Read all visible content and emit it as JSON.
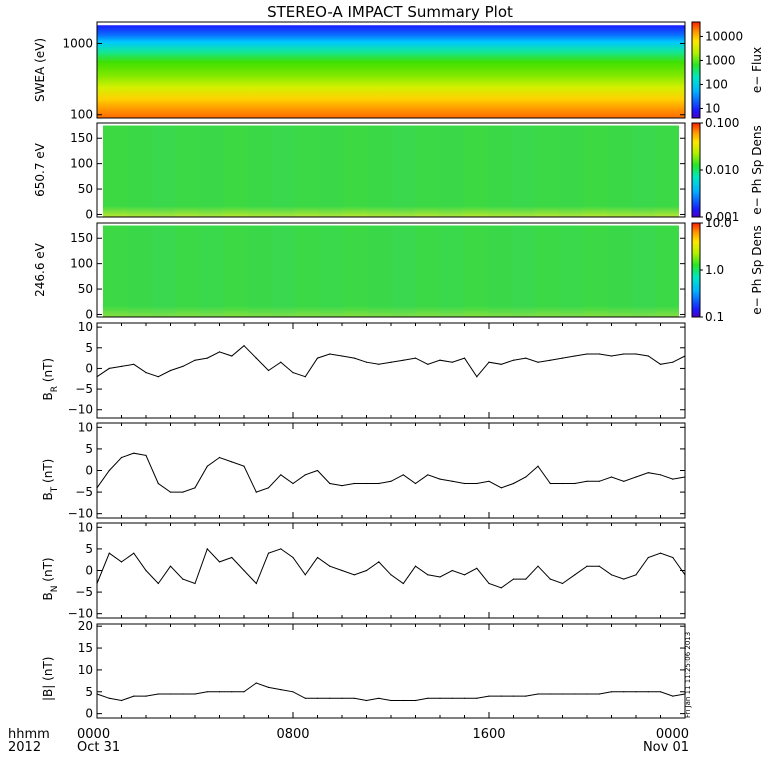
{
  "title": "STEREO-A IMPACT Summary Plot",
  "time_axis": {
    "row_label_1": "hhmm",
    "row_label_2": "2012",
    "ticks": [
      {
        "hour": 0,
        "top": "0000",
        "bottom": "Oct 31"
      },
      {
        "hour": 8,
        "top": "0800",
        "bottom": ""
      },
      {
        "hour": 16,
        "top": "1600",
        "bottom": ""
      },
      {
        "hour": 24,
        "top": "0000",
        "bottom": "Nov 01"
      }
    ]
  },
  "side_stamp": "Fri Jan 11 11:25:06 2013",
  "chart_data": [
    {
      "type": "heatmap",
      "panel": "swea",
      "ylabel": "SWEA (eV)",
      "yscale": "log",
      "ylim": [
        90,
        2000
      ],
      "yticks": [
        {
          "v": 100,
          "t": "100"
        },
        {
          "v": 1000,
          "t": "1000"
        }
      ],
      "colorbar": {
        "label": "e− Flux",
        "scale": "log",
        "range": [
          4,
          40000
        ],
        "ticks": [
          {
            "v": 10,
            "t": "10"
          },
          {
            "v": 100,
            "t": "100"
          },
          {
            "v": 1000,
            "t": "1000"
          },
          {
            "v": 10000,
            "t": "10000"
          }
        ]
      },
      "colors": {
        "bottom": "#ff6a00",
        "mid": "#40e000",
        "top": "#1a1aff"
      }
    },
    {
      "type": "heatmap",
      "panel": "pad650",
      "ylabel": "650.7 eV",
      "ylim": [
        -5,
        180
      ],
      "yticks": [
        {
          "v": 0,
          "t": "0"
        },
        {
          "v": 50,
          "t": "50"
        },
        {
          "v": 100,
          "t": "100"
        },
        {
          "v": 150,
          "t": "150"
        }
      ],
      "colorbar": {
        "label": "e− Ph Sp Dens",
        "scale": "log",
        "range": [
          0.001,
          0.1
        ],
        "ticks": [
          {
            "v": 0.001,
            "t": "0.001"
          },
          {
            "v": 0.01,
            "t": "0.010"
          },
          {
            "v": 0.1,
            "t": "0.100"
          }
        ]
      },
      "colors": {
        "main": "#3ed93e",
        "low": "#c4e82a",
        "high": "#20d8a0"
      }
    },
    {
      "type": "heatmap",
      "panel": "pad246",
      "ylabel": "246.6 eV",
      "ylim": [
        -5,
        180
      ],
      "yticks": [
        {
          "v": 0,
          "t": "0"
        },
        {
          "v": 50,
          "t": "50"
        },
        {
          "v": 100,
          "t": "100"
        },
        {
          "v": 150,
          "t": "150"
        }
      ],
      "colorbar": {
        "label": "e− Ph Sp Dens",
        "scale": "log",
        "range": [
          0.1,
          10
        ],
        "ticks": [
          {
            "v": 0.1,
            "t": "0.1"
          },
          {
            "v": 1,
            "t": "1.0"
          },
          {
            "v": 10,
            "t": "10.0"
          }
        ]
      },
      "colors": {
        "main": "#3ed93e",
        "low": "#8ee03a",
        "high": "#20d8b0"
      }
    },
    {
      "type": "line",
      "panel": "br",
      "ylabel_main": "B",
      "ylabel_sub": "R",
      "ylabel_unit": " (nT)",
      "ylim": [
        -12,
        11
      ],
      "yticks": [
        {
          "v": -10,
          "t": "−10"
        },
        {
          "v": -5,
          "t": "−5"
        },
        {
          "v": 0,
          "t": "0"
        },
        {
          "v": 5,
          "t": "5"
        },
        {
          "v": 10,
          "t": "10"
        }
      ],
      "x": [
        0,
        0.5,
        1,
        1.5,
        2,
        2.5,
        3,
        3.5,
        4,
        4.5,
        5,
        5.5,
        6,
        6.5,
        7,
        7.5,
        8,
        8.5,
        9,
        9.5,
        10,
        10.5,
        11,
        11.5,
        12,
        12.5,
        13,
        13.5,
        14,
        14.5,
        15,
        15.5,
        16,
        16.5,
        17,
        17.5,
        18,
        18.5,
        19,
        19.5,
        20,
        20.5,
        21,
        21.5,
        22,
        22.5,
        23,
        23.5,
        24
      ],
      "y": [
        -2,
        0,
        0.5,
        1,
        -1,
        -2,
        -0.5,
        0.5,
        2,
        2.5,
        4,
        3,
        5.5,
        2.5,
        -0.5,
        1.5,
        -1,
        -2,
        2.5,
        3.5,
        3,
        2.5,
        1.5,
        1,
        1.5,
        2,
        2.5,
        1,
        2,
        1.5,
        2.5,
        -2,
        1.5,
        1,
        2,
        2.5,
        1.5,
        2,
        2.5,
        3,
        3.5,
        3.5,
        3,
        3.5,
        3.5,
        3,
        1,
        1.5,
        3
      ]
    },
    {
      "type": "line",
      "panel": "bt",
      "ylabel_main": "B",
      "ylabel_sub": "T",
      "ylabel_unit": " (nT)",
      "ylim": [
        -11,
        11
      ],
      "yticks": [
        {
          "v": -10,
          "t": "−10"
        },
        {
          "v": -5,
          "t": "−5"
        },
        {
          "v": 0,
          "t": "0"
        },
        {
          "v": 5,
          "t": "5"
        },
        {
          "v": 10,
          "t": "10"
        }
      ],
      "x": [
        0,
        0.5,
        1,
        1.5,
        2,
        2.5,
        3,
        3.5,
        4,
        4.5,
        5,
        5.5,
        6,
        6.5,
        7,
        7.5,
        8,
        8.5,
        9,
        9.5,
        10,
        10.5,
        11,
        11.5,
        12,
        12.5,
        13,
        13.5,
        14,
        14.5,
        15,
        15.5,
        16,
        16.5,
        17,
        17.5,
        18,
        18.5,
        19,
        19.5,
        20,
        20.5,
        21,
        21.5,
        22,
        22.5,
        23,
        23.5,
        24
      ],
      "y": [
        -4,
        0,
        3,
        4,
        3.5,
        -3,
        -5,
        -5,
        -4,
        1,
        3,
        2,
        1,
        -5,
        -4,
        -1,
        -3,
        -1,
        0,
        -3,
        -3.5,
        -3,
        -3,
        -3,
        -2.5,
        -1,
        -3,
        -1,
        -2,
        -2.5,
        -3,
        -3,
        -2.5,
        -4,
        -3,
        -1.5,
        1,
        -3,
        -3,
        -3,
        -2.5,
        -2.5,
        -1.5,
        -2.5,
        -1.5,
        -0.5,
        -1,
        -2,
        -1.5
      ]
    },
    {
      "type": "line",
      "panel": "bn",
      "ylabel_main": "B",
      "ylabel_sub": "N",
      "ylabel_unit": " (nT)",
      "ylim": [
        -11,
        11
      ],
      "yticks": [
        {
          "v": -10,
          "t": "−10"
        },
        {
          "v": -5,
          "t": "−5"
        },
        {
          "v": 0,
          "t": "0"
        },
        {
          "v": 5,
          "t": "5"
        },
        {
          "v": 10,
          "t": "10"
        }
      ],
      "x": [
        0,
        0.5,
        1,
        1.5,
        2,
        2.5,
        3,
        3.5,
        4,
        4.5,
        5,
        5.5,
        6,
        6.5,
        7,
        7.5,
        8,
        8.5,
        9,
        9.5,
        10,
        10.5,
        11,
        11.5,
        12,
        12.5,
        13,
        13.5,
        14,
        14.5,
        15,
        15.5,
        16,
        16.5,
        17,
        17.5,
        18,
        18.5,
        19,
        19.5,
        20,
        20.5,
        21,
        21.5,
        22,
        22.5,
        23,
        23.5,
        24
      ],
      "y": [
        -3,
        4,
        2,
        4,
        0,
        -3,
        1,
        -2,
        -3,
        5,
        2,
        3,
        0,
        -3,
        4,
        5,
        3,
        -1,
        3,
        1,
        0,
        -1,
        0,
        2,
        -1,
        -3,
        1,
        -1,
        -1.5,
        0,
        -1,
        0.5,
        -3,
        -4,
        -2,
        -2,
        1,
        -2,
        -3,
        -1,
        1,
        1,
        -1,
        -2,
        -1,
        3,
        4,
        3,
        -1
      ]
    },
    {
      "type": "line",
      "panel": "bmag",
      "ylabel_main": "|B| (nT)",
      "ylim": [
        -1,
        20.5
      ],
      "yticks": [
        {
          "v": 0,
          "t": "0"
        },
        {
          "v": 5,
          "t": "5"
        },
        {
          "v": 10,
          "t": "10"
        },
        {
          "v": 15,
          "t": "15"
        },
        {
          "v": 20,
          "t": "20"
        }
      ],
      "x": [
        0,
        0.5,
        1,
        1.5,
        2,
        2.5,
        3,
        3.5,
        4,
        4.5,
        5,
        5.5,
        6,
        6.5,
        7,
        7.5,
        8,
        8.5,
        9,
        9.5,
        10,
        10.5,
        11,
        11.5,
        12,
        12.5,
        13,
        13.5,
        14,
        14.5,
        15,
        15.5,
        16,
        16.5,
        17,
        17.5,
        18,
        18.5,
        19,
        19.5,
        20,
        20.5,
        21,
        21.5,
        22,
        22.5,
        23,
        23.5,
        24
      ],
      "y": [
        4.5,
        3.5,
        3,
        4,
        4,
        4.5,
        4.5,
        4.5,
        4.5,
        5,
        5,
        5,
        5,
        7,
        6,
        5.5,
        5,
        3.5,
        3.5,
        3.5,
        3.5,
        3.5,
        3,
        3.5,
        3,
        3,
        3,
        3.5,
        3.5,
        3.5,
        3.5,
        3.5,
        4,
        4,
        4,
        4,
        4.5,
        4.5,
        4.5,
        4.5,
        4.5,
        4.5,
        5,
        5,
        5,
        5,
        5,
        4,
        4.5
      ]
    }
  ]
}
